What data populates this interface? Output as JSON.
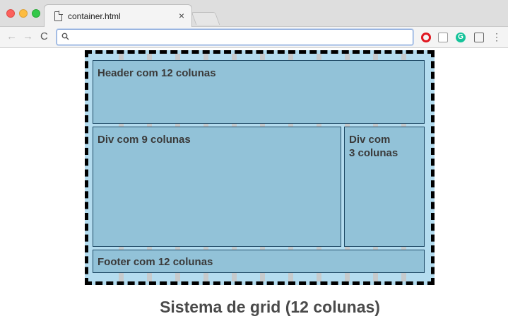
{
  "browser": {
    "tab": {
      "title": "container.html",
      "close": "×"
    },
    "nav": {
      "back": "←",
      "forward": "→",
      "reload": "C"
    },
    "omnibox": {
      "value": "",
      "placeholder": ""
    },
    "extensions": {
      "grammarly": "G",
      "menu": "⋮"
    }
  },
  "page": {
    "header_label": "Header com 12 colunas",
    "div9_label": "Div com 9 colunas",
    "div3_label": "Div com\n3 colunas",
    "footer_label": "Footer com 12 colunas",
    "caption": "Sistema de grid (12 colunas)"
  }
}
